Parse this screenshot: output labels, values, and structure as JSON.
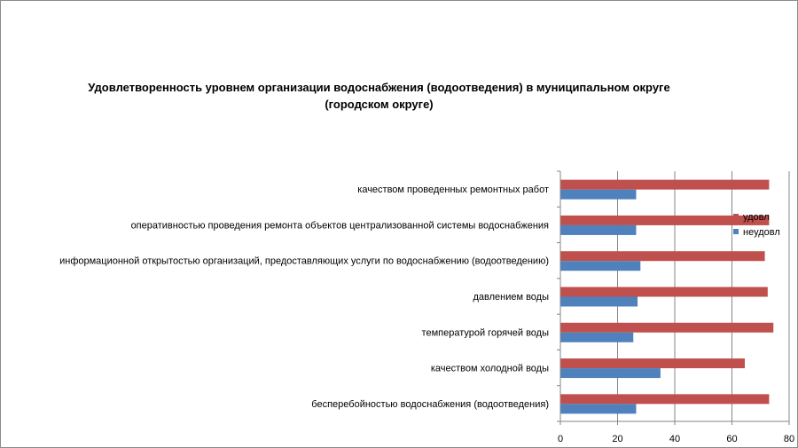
{
  "chart_data": {
    "type": "bar",
    "orientation": "horizontal",
    "title_line1": "Удовлетворенность уровнем организации водоснабжения (водоотведения) в муниципальном округе",
    "title_line2": "(городском округе)",
    "categories": [
      "качеством проведенных ремонтных работ",
      "оперативностью проведения ремонта объектов централизованной системы водоснабжения",
      "информационной открытостью организаций, предоставляющих услуги по водоснабжению (водоотведению)",
      "давлением воды",
      "температурой горячей воды",
      "качеством холодной воды",
      "бесперебойностью водоснабжения (водоотведения)"
    ],
    "series": [
      {
        "name": "удовл",
        "color": "#c0504d",
        "values": [
          73,
          73,
          71.5,
          72.5,
          74.5,
          64.5,
          73
        ]
      },
      {
        "name": "неудовл",
        "color": "#4f81bd",
        "values": [
          26.5,
          26.5,
          28,
          27,
          25.5,
          35,
          26.5
        ]
      }
    ],
    "xlim": [
      0,
      80
    ],
    "xticks": [
      "0",
      "20",
      "40",
      "60",
      "80"
    ],
    "grid": true,
    "legend_position": "right"
  }
}
